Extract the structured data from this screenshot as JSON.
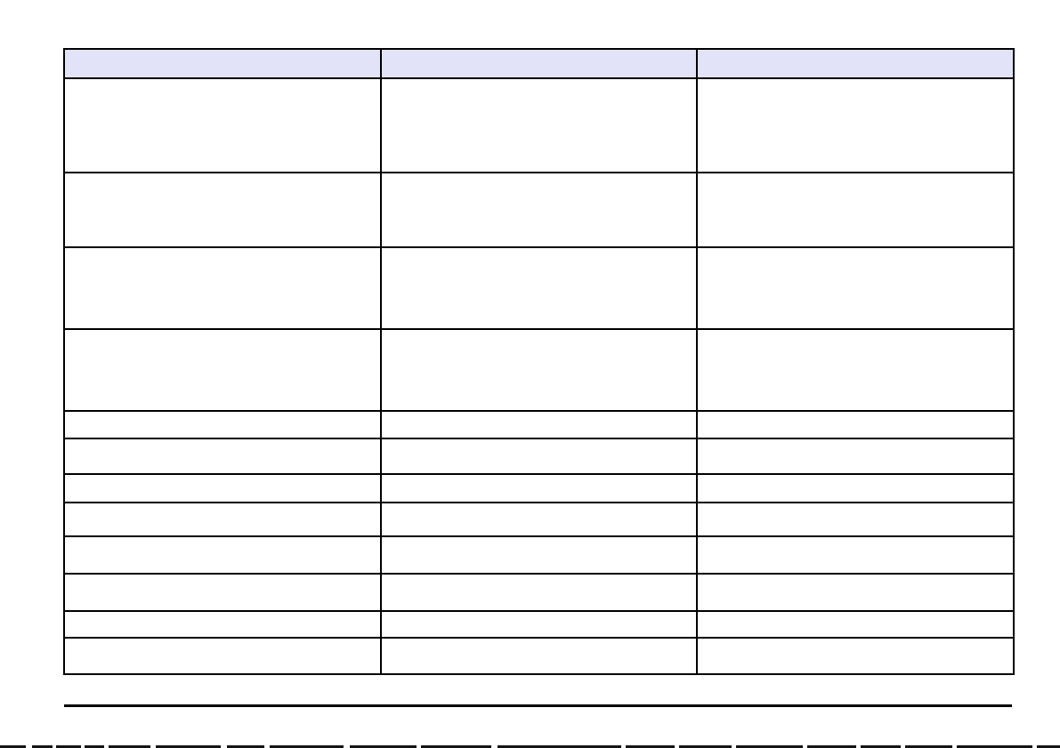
{
  "page": {
    "background": "#ffffff"
  },
  "table": {
    "columns": 3,
    "border_color": "#000000",
    "header": {
      "fill": "#e2e2f8",
      "cells": [
        "",
        "",
        ""
      ]
    },
    "rows": [
      {
        "cells": [
          "",
          "",
          ""
        ]
      },
      {
        "cells": [
          "",
          "",
          ""
        ]
      },
      {
        "cells": [
          "",
          "",
          ""
        ]
      },
      {
        "cells": [
          "",
          "",
          ""
        ]
      },
      {
        "cells": [
          "",
          "",
          ""
        ]
      },
      {
        "cells": [
          "",
          "",
          ""
        ]
      },
      {
        "cells": [
          "",
          "",
          ""
        ]
      },
      {
        "cells": [
          "",
          "",
          ""
        ]
      },
      {
        "cells": [
          "",
          "",
          ""
        ]
      },
      {
        "cells": [
          "",
          "",
          ""
        ]
      },
      {
        "cells": [
          "",
          "",
          ""
        ]
      },
      {
        "cells": [
          "",
          "",
          ""
        ]
      }
    ]
  },
  "footer_rule": {
    "color": "#000000"
  },
  "clipped_bottom_text": {
    "color": "#151515",
    "segments": [
      [
        0,
        29
      ],
      [
        36,
        23
      ],
      [
        63,
        28
      ],
      [
        95,
        22
      ],
      [
        122,
        47
      ],
      [
        175,
        73
      ],
      [
        255,
        42
      ],
      [
        303,
        83
      ],
      [
        393,
        75
      ],
      [
        473,
        79
      ],
      [
        559,
        139
      ],
      [
        703,
        55
      ],
      [
        763,
        59
      ],
      [
        827,
        75
      ],
      [
        907,
        55
      ],
      [
        967,
        45
      ],
      [
        1017,
        53
      ],
      [
        1075,
        85
      ],
      [
        1165,
        26
      ]
    ]
  }
}
